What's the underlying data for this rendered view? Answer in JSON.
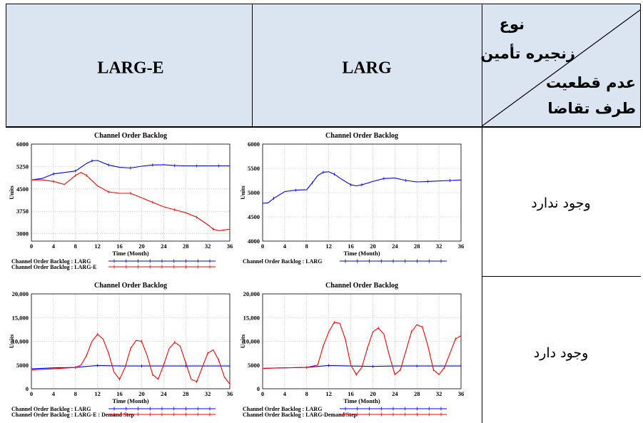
{
  "table": {
    "col_headers": [
      "LARG-E",
      "LARG"
    ],
    "corner": {
      "top_lines": [
        "نوع",
        "زنجیره تأمین"
      ],
      "bottom_lines": [
        "عدم قطعیت",
        "طرف تقاضا"
      ]
    },
    "rows": [
      {
        "label": "وجود ندارد"
      },
      {
        "label": "وجود دارد"
      }
    ]
  },
  "chart_data": [
    {
      "id": "r1c1",
      "type": "line",
      "title": "Channel Order Backlog",
      "xlabel": "Time (Month)",
      "ylabel": "Units",
      "xlim": [
        0,
        36
      ],
      "ylim": [
        2750,
        6000
      ],
      "xticks": [
        "0",
        "4",
        "8",
        "12",
        "16",
        "20",
        "24",
        "28",
        "32",
        "36"
      ],
      "yticks": [
        {
          "v": 6000,
          "t": "6000"
        },
        {
          "v": 5250,
          "t": "5250"
        },
        {
          "v": 4500,
          "t": "4500"
        },
        {
          "v": 3750,
          "t": "3750"
        },
        {
          "v": 3000,
          "t": "3000"
        }
      ],
      "series": [
        {
          "name": "Channel Order Backlog : LARG",
          "color": "#0000ff",
          "x": [
            0,
            2,
            4,
            6,
            8,
            10,
            11,
            12,
            14,
            16,
            18,
            20,
            22,
            24,
            26,
            28,
            30,
            32,
            34,
            36
          ],
          "y": [
            4800,
            4850,
            5000,
            5050,
            5100,
            5350,
            5440,
            5450,
            5300,
            5220,
            5200,
            5260,
            5300,
            5310,
            5280,
            5270,
            5270,
            5270,
            5270,
            5270
          ]
        },
        {
          "name": "Channel Order Backlog : LARG-E",
          "color": "#ff0000",
          "x": [
            0,
            2,
            4,
            6,
            8,
            9,
            10,
            12,
            14,
            16,
            18,
            20,
            22,
            24,
            26,
            28,
            30,
            32,
            33,
            34,
            36
          ],
          "y": [
            4800,
            4800,
            4750,
            4650,
            4950,
            5050,
            4950,
            4600,
            4400,
            4350,
            4350,
            4200,
            4050,
            3900,
            3800,
            3700,
            3550,
            3300,
            3150,
            3100,
            3150
          ]
        }
      ]
    },
    {
      "id": "r1c2",
      "type": "line",
      "title": "Channel Order Backlog",
      "xlabel": "Time (Month)",
      "ylabel": "Units",
      "xlim": [
        0,
        36
      ],
      "ylim": [
        4000,
        6000
      ],
      "xticks": [
        "0",
        "4",
        "8",
        "12",
        "16",
        "20",
        "24",
        "28",
        "32",
        "36"
      ],
      "yticks": [
        {
          "v": 6000,
          "t": "6000"
        },
        {
          "v": 5500,
          "t": "5500"
        },
        {
          "v": 5000,
          "t": "5000"
        },
        {
          "v": 4500,
          "t": "4500"
        },
        {
          "v": 4000,
          "t": "4000"
        }
      ],
      "series": [
        {
          "name": "Channel Order Backlog : LARG",
          "color": "#0000ff",
          "x": [
            0,
            1,
            2,
            4,
            6,
            8,
            9,
            10,
            11,
            12,
            13,
            14,
            16,
            17,
            18,
            20,
            22,
            24,
            26,
            28,
            30,
            32,
            34,
            36
          ],
          "y": [
            4780,
            4790,
            4880,
            5020,
            5050,
            5060,
            5200,
            5350,
            5420,
            5430,
            5380,
            5300,
            5160,
            5140,
            5160,
            5230,
            5290,
            5300,
            5250,
            5220,
            5230,
            5240,
            5250,
            5260
          ]
        }
      ]
    },
    {
      "id": "r2c1",
      "type": "line",
      "title": "Channel Order Backlog",
      "xlabel": "Time (Month)",
      "ylabel": "Units",
      "xlim": [
        0,
        36
      ],
      "ylim": [
        0,
        20000
      ],
      "xticks": [
        "0",
        "4",
        "8",
        "12",
        "16",
        "20",
        "24",
        "28",
        "32",
        "36"
      ],
      "yticks": [
        {
          "v": 20000,
          "t": "20,000"
        },
        {
          "v": 15000,
          "t": "15,000"
        },
        {
          "v": 10000,
          "t": "10,000"
        },
        {
          "v": 5000,
          "t": "5000"
        },
        {
          "v": 0,
          "t": "0"
        }
      ],
      "series": [
        {
          "name": "Channel Order Backlog : LARG",
          "color": "#0000ff",
          "x": [
            0,
            4,
            8,
            10,
            12,
            16,
            20,
            24,
            28,
            32,
            36
          ],
          "y": [
            4200,
            4400,
            4500,
            4700,
            4900,
            4800,
            4800,
            4800,
            4800,
            4800,
            4800
          ]
        },
        {
          "name": "Channel Order Backlog : LARG-E : Demand Step",
          "color": "#ff0000",
          "x": [
            0,
            4,
            8,
            9,
            10,
            11,
            12,
            13,
            14,
            15,
            16,
            17,
            18,
            19,
            20,
            21,
            22,
            23,
            24,
            25,
            26,
            27,
            28,
            29,
            30,
            31,
            32,
            33,
            34,
            35,
            36
          ],
          "y": [
            4000,
            4200,
            4500,
            5000,
            7000,
            10000,
            11500,
            10500,
            7500,
            3500,
            2000,
            4500,
            8500,
            10200,
            10000,
            7000,
            3000,
            2000,
            5000,
            8500,
            9800,
            9000,
            5500,
            2000,
            1500,
            4500,
            7500,
            8200,
            6000,
            2500,
            1000
          ]
        }
      ]
    },
    {
      "id": "r2c2",
      "type": "line",
      "title": "Channel Order Backlog",
      "xlabel": "Time (Month)",
      "ylabel": "Units",
      "xlim": [
        0,
        36
      ],
      "ylim": [
        0,
        20000
      ],
      "xticks": [
        "0",
        "4",
        "8",
        "12",
        "16",
        "20",
        "24",
        "28",
        "32",
        "36"
      ],
      "yticks": [
        {
          "v": 20000,
          "t": "20,000"
        },
        {
          "v": 15000,
          "t": "15,000"
        },
        {
          "v": 10000,
          "t": "10,000"
        },
        {
          "v": 5000,
          "t": "5000"
        },
        {
          "v": 0,
          "t": "0"
        }
      ],
      "series": [
        {
          "name": "Channel Order Backlog : LARG",
          "color": "#0000ff",
          "x": [
            0,
            4,
            8,
            10,
            12,
            16,
            20,
            24,
            28,
            32,
            36
          ],
          "y": [
            4300,
            4400,
            4500,
            4700,
            4900,
            4800,
            4700,
            4800,
            4800,
            4800,
            4800
          ]
        },
        {
          "name": "Channel Order Backlog : LARG-Demand Step",
          "color": "#ff0000",
          "x": [
            0,
            4,
            8,
            10,
            11,
            12,
            13,
            14,
            15,
            16,
            17,
            18,
            19,
            20,
            21,
            22,
            23,
            24,
            25,
            26,
            27,
            28,
            29,
            30,
            31,
            32,
            33,
            34,
            35,
            36
          ],
          "y": [
            4300,
            4400,
            4500,
            5000,
            9000,
            12000,
            14000,
            13800,
            10500,
            5000,
            3000,
            4500,
            8500,
            12000,
            12800,
            11500,
            7000,
            3000,
            4000,
            8000,
            12000,
            13500,
            13000,
            9000,
            4000,
            3000,
            4500,
            7500,
            10500,
            11200
          ]
        }
      ]
    }
  ]
}
